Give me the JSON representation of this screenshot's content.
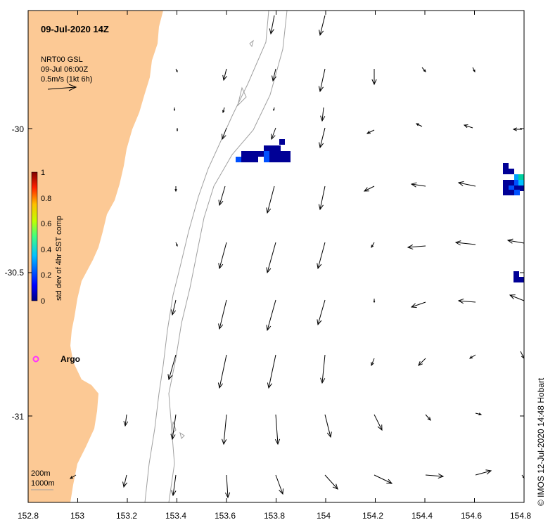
{
  "map": {
    "timestamp": "09-Jul-2020 14Z",
    "vector_legend": {
      "line1": "NRT00 GSL",
      "line2": "09-Jul 06:00Z",
      "line3": "0.5m/s (1kt 6h)"
    },
    "colorbar": {
      "title": "std dev of 4hr SST comp",
      "ticks": [
        "1",
        "0.8",
        "0.6",
        "0.4",
        "0.2",
        "0"
      ],
      "range": [
        0,
        1
      ]
    },
    "depth_contours": {
      "shallow": "200m",
      "deep": "1000m"
    },
    "argo": {
      "label": "Argo",
      "color": "#ff33ff"
    },
    "x_ticks": [
      "152.8",
      "153",
      "153.2",
      "153.4",
      "153.6",
      "153.8",
      "154",
      "154.2",
      "154.4",
      "154.6",
      "154.8"
    ],
    "y_ticks": [
      "-30",
      "-30.5",
      "-31"
    ],
    "credit": "© IMOS 12-Jul-2020 14:48 Hobart",
    "colors": {
      "land": "#fcc995",
      "contour": "#a0a0a0",
      "sst_low": "#000096",
      "sst_mid": "#0050ff"
    }
  }
}
